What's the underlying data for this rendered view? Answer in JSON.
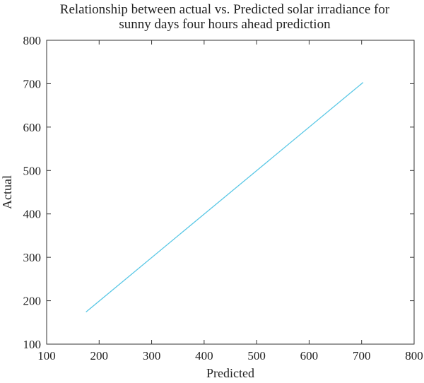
{
  "chart_data": {
    "type": "line",
    "title": "Relationship between actual vs. Predicted solar irradiance for sunny days four hours ahead prediction",
    "title_lines": [
      "Relationship between actual vs. Predicted solar irradiance for",
      "sunny days four hours ahead prediction"
    ],
    "xlabel": "Predicted",
    "ylabel": "Actual",
    "xlim": [
      100,
      800
    ],
    "ylim": [
      100,
      800
    ],
    "xticks": [
      100,
      200,
      300,
      400,
      500,
      600,
      700,
      800
    ],
    "yticks": [
      100,
      200,
      300,
      400,
      500,
      600,
      700,
      800
    ],
    "grid": false,
    "series": [
      {
        "color": "#5bc8e6",
        "x": [
          175,
          703
        ],
        "y": [
          174,
          703
        ]
      }
    ]
  }
}
